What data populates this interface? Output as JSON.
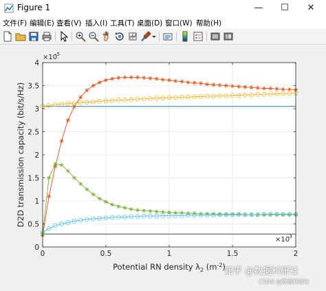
{
  "window": {
    "title": "Figure 1",
    "minimize": "—",
    "maximize": "☐",
    "close": "✕"
  },
  "menu": [
    "文件(F)",
    "编辑(E)",
    "查看(V)",
    "插入(I)",
    "工具(T)",
    "桌面(D)",
    "窗口(W)",
    "帮助(H)"
  ],
  "toolbar": [
    "new-figure-icon",
    "open-file-icon",
    "save-icon",
    "print-icon",
    "pointer-icon",
    "zoom-in-icon",
    "zoom-out-icon",
    "pan-icon",
    "rotate-3d-icon",
    "data-cursor-icon",
    "brush-icon",
    "brush-dropdown-icon",
    "link-plot-icon",
    "colorbar-icon",
    "legend-icon",
    "hide-plot-tools-icon",
    "show-plot-tools-icon"
  ],
  "colors": {
    "blue": "#0072BD",
    "orange": "#D95319",
    "yellow": "#EDB120",
    "purple": "#7E2F8E",
    "green": "#77AC30",
    "cyan": "#4DBEEE",
    "black": "#333333"
  },
  "chart_data": {
    "type": "line",
    "xlabel_main": "Potential RN density λ",
    "xlabel_sub": "2",
    "xlabel_unit": " (m",
    "xlabel_exp": "-2",
    "xlabel_close": ")",
    "ylabel": "D2D transmission capacity (bit/s/Hz)",
    "y_exponent_base": "×10",
    "y_exponent_power": "-5",
    "x_exponent_base": "×10",
    "x_exponent_power": "-3",
    "xlim": [
      0,
      2
    ],
    "ylim": [
      0,
      4
    ],
    "x_ticks": [
      "0",
      "0.5",
      "1",
      "1.5",
      "2"
    ],
    "y_ticks": [
      "0",
      "0.5",
      "1",
      "1.5",
      "2",
      "2.5",
      "3",
      "3.5",
      "4"
    ],
    "grid": true,
    "series": [
      {
        "color": "#0072BD",
        "marker": "none",
        "x": [
          0,
          2
        ],
        "y": [
          3.05,
          3.05
        ]
      },
      {
        "color": "#333333",
        "marker": "none",
        "x": [
          0,
          2
        ],
        "y": [
          0.28,
          0.28
        ]
      },
      {
        "color": "#D95319",
        "marker": "star",
        "x": [
          0,
          0.05,
          0.1,
          0.15,
          0.2,
          0.25,
          0.3,
          0.35,
          0.4,
          0.45,
          0.5,
          0.55,
          0.6,
          0.65,
          0.7,
          0.75,
          0.8,
          0.85,
          0.9,
          0.95,
          1,
          1.05,
          1.1,
          1.15,
          1.2,
          1.25,
          1.3,
          1.35,
          1.4,
          1.45,
          1.5,
          1.55,
          1.6,
          1.65,
          1.7,
          1.75,
          1.8,
          1.85,
          1.9,
          1.95,
          2
        ],
        "y": [
          0.25,
          1.1,
          1.75,
          2.3,
          2.75,
          3.05,
          3.25,
          3.4,
          3.5,
          3.57,
          3.62,
          3.65,
          3.67,
          3.68,
          3.68,
          3.68,
          3.67,
          3.66,
          3.65,
          3.63,
          3.62,
          3.6,
          3.59,
          3.57,
          3.56,
          3.55,
          3.53,
          3.52,
          3.51,
          3.5,
          3.49,
          3.48,
          3.47,
          3.46,
          3.45,
          3.44,
          3.44,
          3.43,
          3.42,
          3.42,
          3.41
        ]
      },
      {
        "color": "#EDB120",
        "marker": "circle",
        "x": [
          0,
          0.05,
          0.1,
          0.15,
          0.2,
          0.25,
          0.3,
          0.35,
          0.4,
          0.45,
          0.5,
          0.55,
          0.6,
          0.65,
          0.7,
          0.75,
          0.8,
          0.85,
          0.9,
          0.95,
          1,
          1.05,
          1.1,
          1.15,
          1.2,
          1.25,
          1.3,
          1.35,
          1.4,
          1.45,
          1.5,
          1.55,
          1.6,
          1.65,
          1.7,
          1.75,
          1.8,
          1.85,
          1.9,
          1.95,
          2
        ],
        "y": [
          3.05,
          3.07,
          3.09,
          3.1,
          3.11,
          3.12,
          3.13,
          3.14,
          3.15,
          3.16,
          3.17,
          3.18,
          3.19,
          3.19,
          3.2,
          3.21,
          3.21,
          3.22,
          3.23,
          3.23,
          3.24,
          3.24,
          3.25,
          3.25,
          3.26,
          3.26,
          3.27,
          3.27,
          3.28,
          3.28,
          3.29,
          3.29,
          3.3,
          3.3,
          3.31,
          3.31,
          3.32,
          3.32,
          3.33,
          3.33,
          3.34
        ]
      },
      {
        "color": "#77AC30",
        "marker": "star",
        "x": [
          0,
          0.05,
          0.1,
          0.15,
          0.2,
          0.25,
          0.3,
          0.35,
          0.4,
          0.45,
          0.5,
          0.55,
          0.6,
          0.65,
          0.7,
          0.75,
          0.8,
          0.85,
          0.9,
          0.95,
          1,
          1.05,
          1.1,
          1.15,
          1.2,
          1.25,
          1.3,
          1.35,
          1.4,
          1.45,
          1.5,
          1.55,
          1.6,
          1.65,
          1.7,
          1.75,
          1.8,
          1.85,
          1.9,
          1.95,
          2
        ],
        "y": [
          0.3,
          1.5,
          1.8,
          1.78,
          1.65,
          1.5,
          1.37,
          1.25,
          1.14,
          1.05,
          0.98,
          0.92,
          0.88,
          0.85,
          0.82,
          0.8,
          0.79,
          0.78,
          0.77,
          0.76,
          0.75,
          0.74,
          0.74,
          0.73,
          0.73,
          0.72,
          0.72,
          0.72,
          0.71,
          0.71,
          0.71,
          0.71,
          0.7,
          0.7,
          0.7,
          0.7,
          0.7,
          0.7,
          0.7,
          0.7,
          0.7
        ]
      },
      {
        "color": "#4DBEEE",
        "marker": "circle",
        "x": [
          0,
          0.05,
          0.1,
          0.15,
          0.2,
          0.25,
          0.3,
          0.35,
          0.4,
          0.45,
          0.5,
          0.55,
          0.6,
          0.65,
          0.7,
          0.75,
          0.8,
          0.85,
          0.9,
          0.95,
          1,
          1.05,
          1.1,
          1.15,
          1.2,
          1.25,
          1.3,
          1.35,
          1.4,
          1.45,
          1.5,
          1.55,
          1.6,
          1.65,
          1.7,
          1.75,
          1.8,
          1.85,
          1.9,
          1.95,
          2
        ],
        "y": [
          0.32,
          0.4,
          0.46,
          0.5,
          0.53,
          0.56,
          0.58,
          0.6,
          0.61,
          0.62,
          0.63,
          0.64,
          0.65,
          0.65,
          0.66,
          0.66,
          0.67,
          0.67,
          0.67,
          0.68,
          0.68,
          0.68,
          0.68,
          0.69,
          0.69,
          0.69,
          0.69,
          0.69,
          0.7,
          0.7,
          0.7,
          0.7,
          0.7,
          0.7,
          0.7,
          0.71,
          0.71,
          0.71,
          0.71,
          0.71,
          0.71
        ]
      }
    ]
  },
  "watermark": {
    "text1": "知乎 @数据科研社",
    "text2": "CSDN @数据科研社"
  }
}
